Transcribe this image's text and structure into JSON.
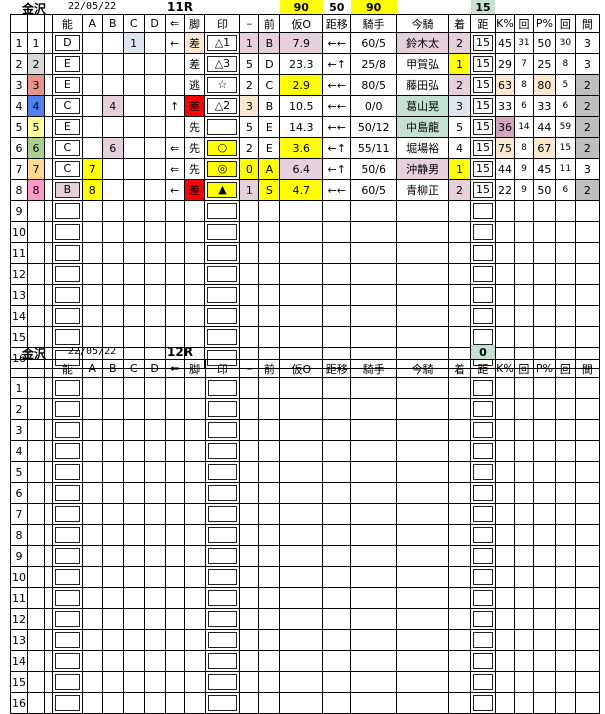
{
  "colors": {
    "pink": "#e6d0dc",
    "yellow": "#ffff00",
    "lightblue": "#dce6f1",
    "orange": "#fde9d0",
    "green": "#c4e2d2",
    "gray": "#bfbfbf",
    "red": "#ff0000",
    "purple": "#d4a5c0",
    "h2": "#d9d9d9",
    "h3": "#e6948c",
    "h4": "#4f81f0",
    "h5": "#ffff99",
    "h6": "#a9d08e",
    "h7": "#ffd98c",
    "h8": "#ff99cc"
  },
  "columns": [
    "",
    "",
    "",
    "能",
    "A",
    "B",
    "C",
    "D",
    "⇐",
    "脚",
    "印",
    "–",
    "前",
    "仮O",
    "距移",
    "騎手",
    "今騎",
    "着",
    "距",
    "K%",
    "回",
    "P%",
    "回",
    "間"
  ],
  "races": [
    {
      "venue": "金沢",
      "date": "22/05/22",
      "race": "11R",
      "top": [
        "",
        "",
        "",
        "",
        "",
        "",
        "",
        "",
        "",
        "",
        "",
        "",
        "",
        "90",
        "50",
        "90",
        "",
        "",
        "15",
        "",
        "",
        "",
        "",
        ""
      ],
      "topFills": {
        "13": "yellow",
        "15": "yellow",
        "18": "green"
      },
      "rows": [
        {
          "v": [
            "1",
            "1",
            "",
            "D",
            "",
            "",
            "1",
            "",
            "←",
            "差",
            "△1",
            "1",
            "B",
            "7.9",
            "←←",
            "60/5",
            "鈴木太",
            "2",
            "15",
            "45",
            "31",
            "50",
            "30",
            "3"
          ],
          "f": {
            "6": "lightblue",
            "9": "orange",
            "11": "pink",
            "12": "pink",
            "13": "pink",
            "16": "pink",
            "17": "pink"
          }
        },
        {
          "v": [
            "2",
            "2",
            "",
            "E",
            "",
            "",
            "",
            "",
            "",
            "差",
            "△3",
            "5",
            "D",
            "23.3",
            "←↑",
            "25/8",
            "甲賀弘",
            "1",
            "15",
            "29",
            "7",
            "25",
            "8",
            "3"
          ],
          "f": {
            "1": "h2",
            "17": "yellow"
          }
        },
        {
          "v": [
            "3",
            "3",
            "",
            "E",
            "",
            "",
            "",
            "",
            "",
            "逃",
            "☆",
            "2",
            "C",
            "2.9",
            "←←",
            "80/5",
            "藤田弘",
            "2",
            "15",
            "63",
            "8",
            "80",
            "5",
            "2"
          ],
          "f": {
            "1": "h3",
            "13": "yellow",
            "17": "pink",
            "19": "orange",
            "21": "orange",
            "23": "gray"
          }
        },
        {
          "v": [
            "4",
            "4",
            "",
            "C",
            "",
            "4",
            "",
            "",
            "↑",
            "差",
            "△2",
            "3",
            "B",
            "10.5",
            "←←",
            "0/0",
            "葛山晃",
            "3",
            "15",
            "33",
            "6",
            "33",
            "6",
            "2"
          ],
          "f": {
            "1": "h4",
            "5": "pink",
            "9": "red",
            "11": "orange",
            "16": "green",
            "17": "lightblue",
            "23": "gray"
          }
        },
        {
          "v": [
            "5",
            "5",
            "",
            "E",
            "",
            "",
            "",
            "",
            "",
            "先",
            "",
            "5",
            "E",
            "14.3",
            "←←",
            "50/12",
            "中島龍",
            "5",
            "15",
            "36",
            "14",
            "44",
            "59",
            "2"
          ],
          "f": {
            "1": "h5",
            "16": "green",
            "19": "purple",
            "23": "gray"
          }
        },
        {
          "v": [
            "6",
            "6",
            "",
            "C",
            "",
            "6",
            "",
            "",
            "⇐",
            "先",
            "○",
            "2",
            "E",
            "3.6",
            "←↑",
            "55/11",
            "堀場裕",
            "4",
            "15",
            "75",
            "8",
            "67",
            "15",
            "2"
          ],
          "f": {
            "1": "h6",
            "5": "pink",
            "10": "yellow",
            "13": "yellow",
            "19": "orange",
            "21": "orange",
            "23": "gray"
          }
        },
        {
          "v": [
            "7",
            "7",
            "",
            "C",
            "7",
            "",
            "",
            "",
            "⇐",
            "先",
            "◎",
            "0",
            "A",
            "6.4",
            "←↑",
            "50/6",
            "沖静男",
            "1",
            "15",
            "44",
            "9",
            "45",
            "11",
            "3"
          ],
          "f": {
            "1": "h7",
            "4": "yellow",
            "10": "yellow",
            "11": "yellow",
            "12": "yellow",
            "13": "pink",
            "16": "pink",
            "17": "yellow"
          }
        },
        {
          "v": [
            "8",
            "8",
            "",
            "B",
            "8",
            "",
            "",
            "",
            "←",
            "差",
            "▲",
            "1",
            "S",
            "4.7",
            "←←",
            "60/5",
            "青柳正",
            "2",
            "15",
            "22",
            "9",
            "50",
            "6",
            "2"
          ],
          "f": {
            "1": "h8",
            "3": "pink",
            "4": "yellow",
            "9": "red",
            "10": "yellow",
            "11": "pink",
            "12": "yellow",
            "13": "yellow",
            "17": "pink",
            "23": "gray"
          }
        },
        {
          "v": [
            "9"
          ]
        },
        {
          "v": [
            "10"
          ]
        },
        {
          "v": [
            "11"
          ]
        },
        {
          "v": [
            "12"
          ]
        },
        {
          "v": [
            "13"
          ]
        },
        {
          "v": [
            "14"
          ]
        },
        {
          "v": [
            "15"
          ]
        },
        {
          "v": [
            "16"
          ]
        }
      ]
    },
    {
      "venue": "金沢",
      "date": "22/05/22",
      "race": "12R",
      "top": [
        "",
        "",
        "",
        "",
        "",
        "",
        "",
        "",
        "",
        "",
        "",
        "",
        "",
        "",
        "",
        "",
        "",
        "",
        "0",
        "",
        "",
        "",
        "",
        ""
      ],
      "topFills": {
        "18": "green"
      },
      "rows": [
        {
          "v": [
            "1"
          ]
        },
        {
          "v": [
            "2"
          ]
        },
        {
          "v": [
            "3"
          ]
        },
        {
          "v": [
            "4"
          ]
        },
        {
          "v": [
            "5"
          ]
        },
        {
          "v": [
            "6"
          ]
        },
        {
          "v": [
            "7"
          ]
        },
        {
          "v": [
            "8"
          ]
        },
        {
          "v": [
            "9"
          ]
        },
        {
          "v": [
            "10"
          ]
        },
        {
          "v": [
            "11"
          ]
        },
        {
          "v": [
            "12"
          ]
        },
        {
          "v": [
            "13"
          ]
        },
        {
          "v": [
            "14"
          ]
        },
        {
          "v": [
            "15"
          ]
        },
        {
          "v": [
            "16"
          ]
        }
      ]
    }
  ]
}
